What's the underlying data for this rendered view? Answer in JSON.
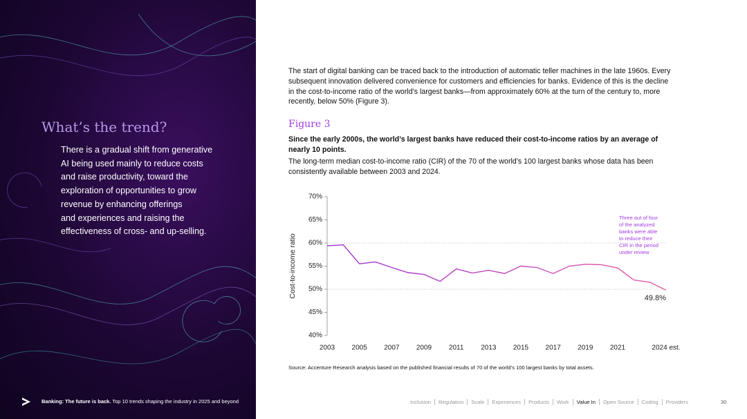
{
  "left": {
    "title": "What’s the trend?",
    "paragraph_lines": [
      "There is a gradual shift from generative",
      "AI being used mainly to reduce costs",
      "and raise productivity, toward the",
      "exploration of opportunities to grow",
      "revenue by enhancing offerings",
      "and experiences and raising the",
      "effectiveness of cross- and up-selling."
    ],
    "footer_bold": "Banking: The future is back.",
    "footer_text": "Top 10 trends shaping the industry in 2025 and beyond"
  },
  "right": {
    "intro": "The start of digital banking can be traced back to the introduction of automatic teller machines in the late 1960s. Every subsequent innovation delivered convenience for customers and efficiencies for banks. Evidence of this is the decline in the cost-to-income ratio of the world’s largest banks—from approximately 60% at the turn of the century to, more recently, below 50% (Figure 3).",
    "figure_label": "Figure 3",
    "figure_headline": "Since the early 2000s, the world’s largest banks have reduced their cost-to-income ratios by an average of nearly 10 points.",
    "figure_description": "The long-term median cost-to-income ratio (CIR) of the 70 of the world’s 100 largest banks whose data has been consistently available between 2003 and 2024.",
    "source": "Source: Accenture Research analysis based on the published financial results of 70 of the world’s 100 largest banks by total assets.",
    "nav": [
      "Inclusion",
      "Regulation",
      "Scale",
      "Experiences",
      "Products",
      "Work",
      "Value In",
      "Open Source",
      "Coding",
      "Providers"
    ],
    "nav_active_index": 6,
    "page_number": "30"
  },
  "chart_data": {
    "type": "line",
    "y_label": "Cost-to-income ratio",
    "x": [
      2003,
      2004,
      2005,
      2006,
      2007,
      2008,
      2009,
      2010,
      2011,
      2012,
      2013,
      2014,
      2015,
      2016,
      2017,
      2018,
      2019,
      2020,
      2021,
      2022,
      2023,
      2024
    ],
    "values": [
      59.4,
      59.6,
      55.5,
      55.9,
      54.7,
      53.6,
      53.2,
      51.7,
      54.4,
      53.5,
      54.1,
      53.4,
      55.0,
      54.7,
      53.4,
      55.0,
      55.4,
      55.3,
      54.6,
      52.0,
      51.5,
      49.8
    ],
    "value_labels": [
      null,
      null,
      null,
      null,
      null,
      null,
      null,
      null,
      null,
      null,
      null,
      null,
      null,
      null,
      null,
      null,
      null,
      null,
      null,
      null,
      null,
      "49.8%"
    ],
    "colors": [
      "#9b2fd6",
      "#ea5fa6"
    ],
    "xlim": [
      2003,
      2024
    ],
    "xticks": [
      2003,
      2005,
      2007,
      2009,
      2011,
      2013,
      2015,
      2017,
      2019,
      2021,
      {
        "value": 2024,
        "label": "2024 est."
      }
    ],
    "ylim": [
      40,
      70
    ],
    "yticks": [
      {
        "value": 40,
        "label": "40%"
      },
      {
        "value": 45,
        "label": "45%"
      },
      {
        "value": 50,
        "label": "50%"
      },
      {
        "value": 55,
        "label": "55%"
      },
      {
        "value": 60,
        "label": "60%"
      },
      {
        "value": 65,
        "label": "65%"
      },
      {
        "value": 70,
        "label": "70%"
      }
    ],
    "reference_lines": [
      60,
      50
    ],
    "annotation_lines": [
      "Three out of four",
      "of the analyzed",
      "banks were able",
      "to reduce their",
      "CIR in the period",
      "under review"
    ]
  }
}
